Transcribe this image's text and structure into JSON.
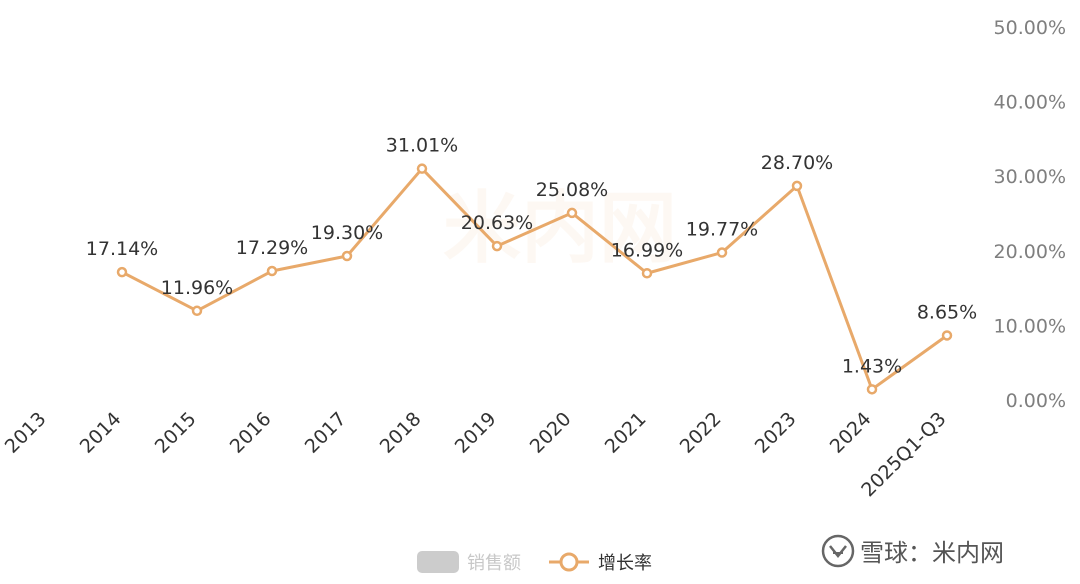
{
  "chart_data": {
    "type": "line",
    "categories": [
      "2013",
      "2014",
      "2015",
      "2016",
      "2017",
      "2018",
      "2019",
      "2020",
      "2021",
      "2022",
      "2023",
      "2024",
      "2025Q1-Q3"
    ],
    "series": [
      {
        "name": "增长率",
        "values": [
          null,
          17.14,
          11.96,
          17.29,
          19.3,
          31.01,
          20.63,
          25.08,
          16.99,
          19.77,
          28.7,
          1.43,
          8.65
        ],
        "labels": [
          null,
          "17.14%",
          "11.96%",
          "17.29%",
          "19.30%",
          "31.01%",
          "20.63%",
          "25.08%",
          "16.99%",
          "19.77%",
          "28.70%",
          "1.43%",
          "8.65%"
        ],
        "color": "#e8a96a"
      }
    ],
    "y_axis": {
      "position": "right",
      "ylim": [
        0,
        50
      ],
      "ticks": [
        "0.00%",
        "10.00%",
        "20.00%",
        "30.00%",
        "40.00%",
        "50.00%"
      ]
    },
    "legend": {
      "placement": "bottom-center",
      "entries": [
        {
          "label": "销售额",
          "symbol": "box",
          "color": "#cccccc"
        },
        {
          "label": "增长率",
          "symbol": "line-circle",
          "color": "#e8a96a"
        }
      ]
    },
    "grid": false
  },
  "watermark": "米内网",
  "footer": {
    "brand": "雪球：米内网",
    "logo_icon": "snowball-logo-icon"
  }
}
